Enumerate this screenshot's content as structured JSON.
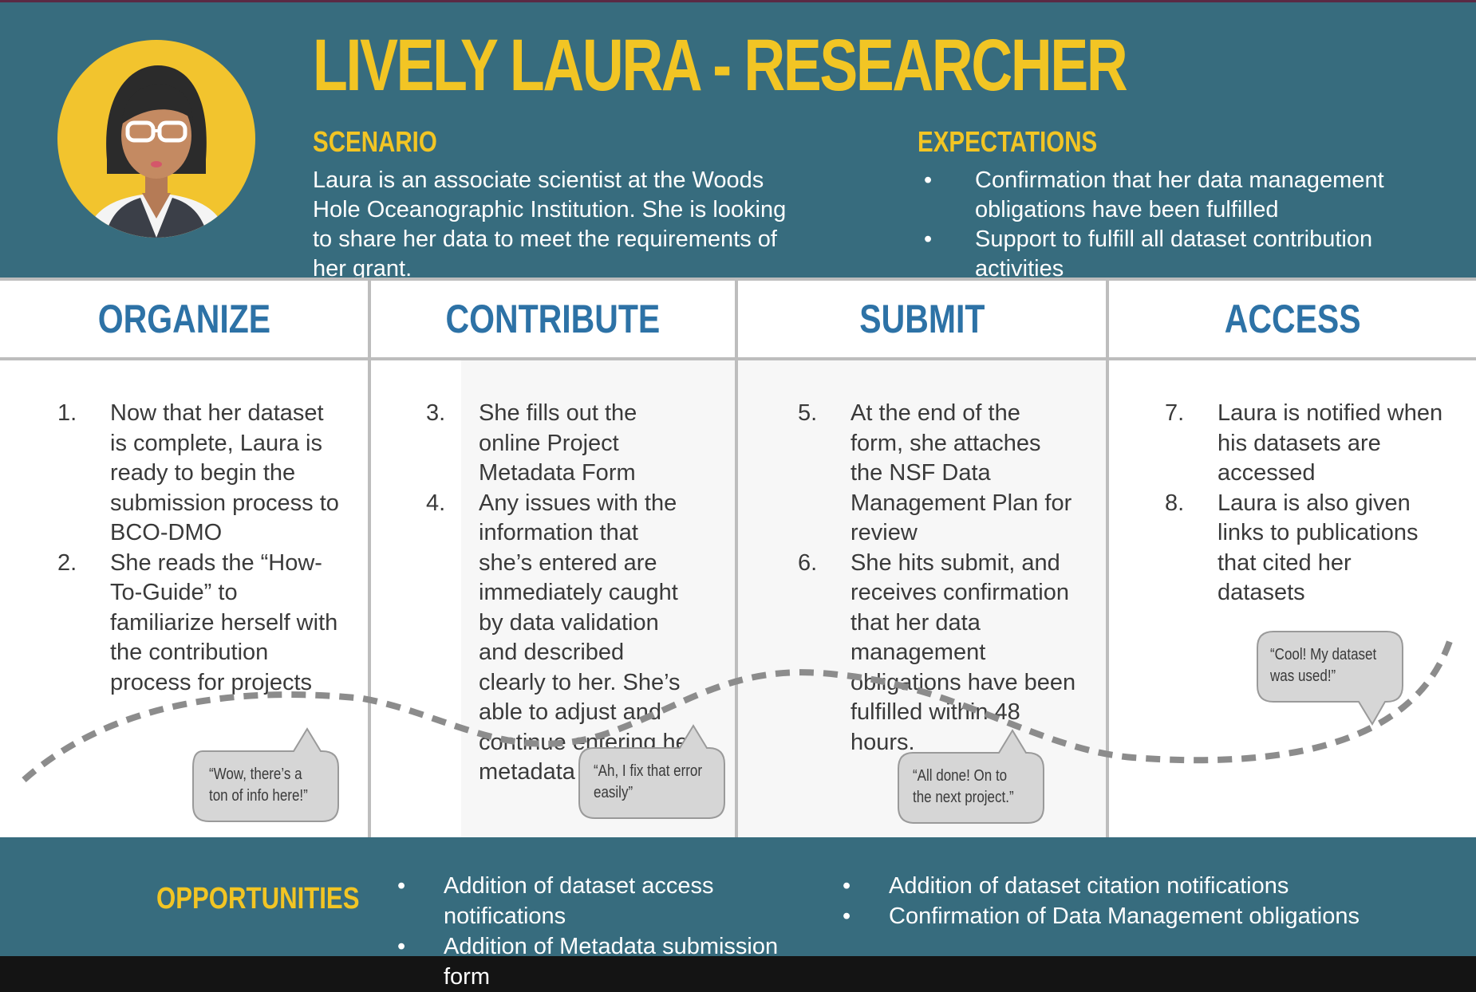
{
  "persona": {
    "title": "LIVELY LAURA - RESEARCHER",
    "scenario_label": "SCENARIO",
    "scenario_text": "Laura is an associate scientist at the Woods Hole Oceanographic Institution. She is looking to share her data to meet the requirements of her grant.",
    "expectations_label": "EXPECTATIONS",
    "expectations": [
      "Confirmation that her data management obligations have been fulfilled",
      "Support to fulfill all dataset contribution activities"
    ],
    "avatar_icon": "researcher-avatar-icon"
  },
  "phases": [
    {
      "title": "ORGANIZE",
      "steps": [
        {
          "num": "1.",
          "text": "Now that her dataset is complete, Laura is ready to begin the submission process to BCO-DMO"
        },
        {
          "num": "2.",
          "text": "She reads the “How-To-Guide” to familiarize herself with the contribution process for projects"
        }
      ],
      "quote": "“Wow, there’s a ton of info here!”"
    },
    {
      "title": "CONTRIBUTE",
      "steps": [
        {
          "num": "3.",
          "text": "She fills out the online Project Metadata Form"
        },
        {
          "num": "4.",
          "text": "Any issues with the information that she’s entered are immediately caught by data validation and described clearly to her. She’s able to adjust and continue entering her metadata information"
        }
      ],
      "quote": "“Ah, I fix that error easily”"
    },
    {
      "title": "SUBMIT",
      "steps": [
        {
          "num": "5.",
          "text": "At the end of the form, she attaches the NSF Data Management Plan for review"
        },
        {
          "num": "6.",
          "text": "She hits submit, and receives confirmation that her data management obligations have been fulfilled within 48 hours."
        }
      ],
      "quote": "“All done! On to the next project.”"
    },
    {
      "title": "ACCESS",
      "steps": [
        {
          "num": "7.",
          "text": "Laura is notified when his datasets are accessed"
        },
        {
          "num": "8.",
          "text": "Laura is also given links to publications that cited her datasets"
        }
      ],
      "quote": "“Cool! My dataset was used!”"
    }
  ],
  "opportunities": {
    "label": "OPPORTUNITIES",
    "left": [
      "Addition of dataset access notifications",
      "Addition of Metadata submission form"
    ],
    "right": [
      "Addition of dataset citation notifications",
      "Confirmation of Data Management obligations"
    ]
  },
  "bullet_glyph": "•",
  "colors": {
    "header_bg": "#376c7e",
    "title_yellow": "#f2c524",
    "phase_blue": "#2d72a6",
    "body_text": "#3a3a3a",
    "bubble_fill": "#d6d6d6"
  }
}
